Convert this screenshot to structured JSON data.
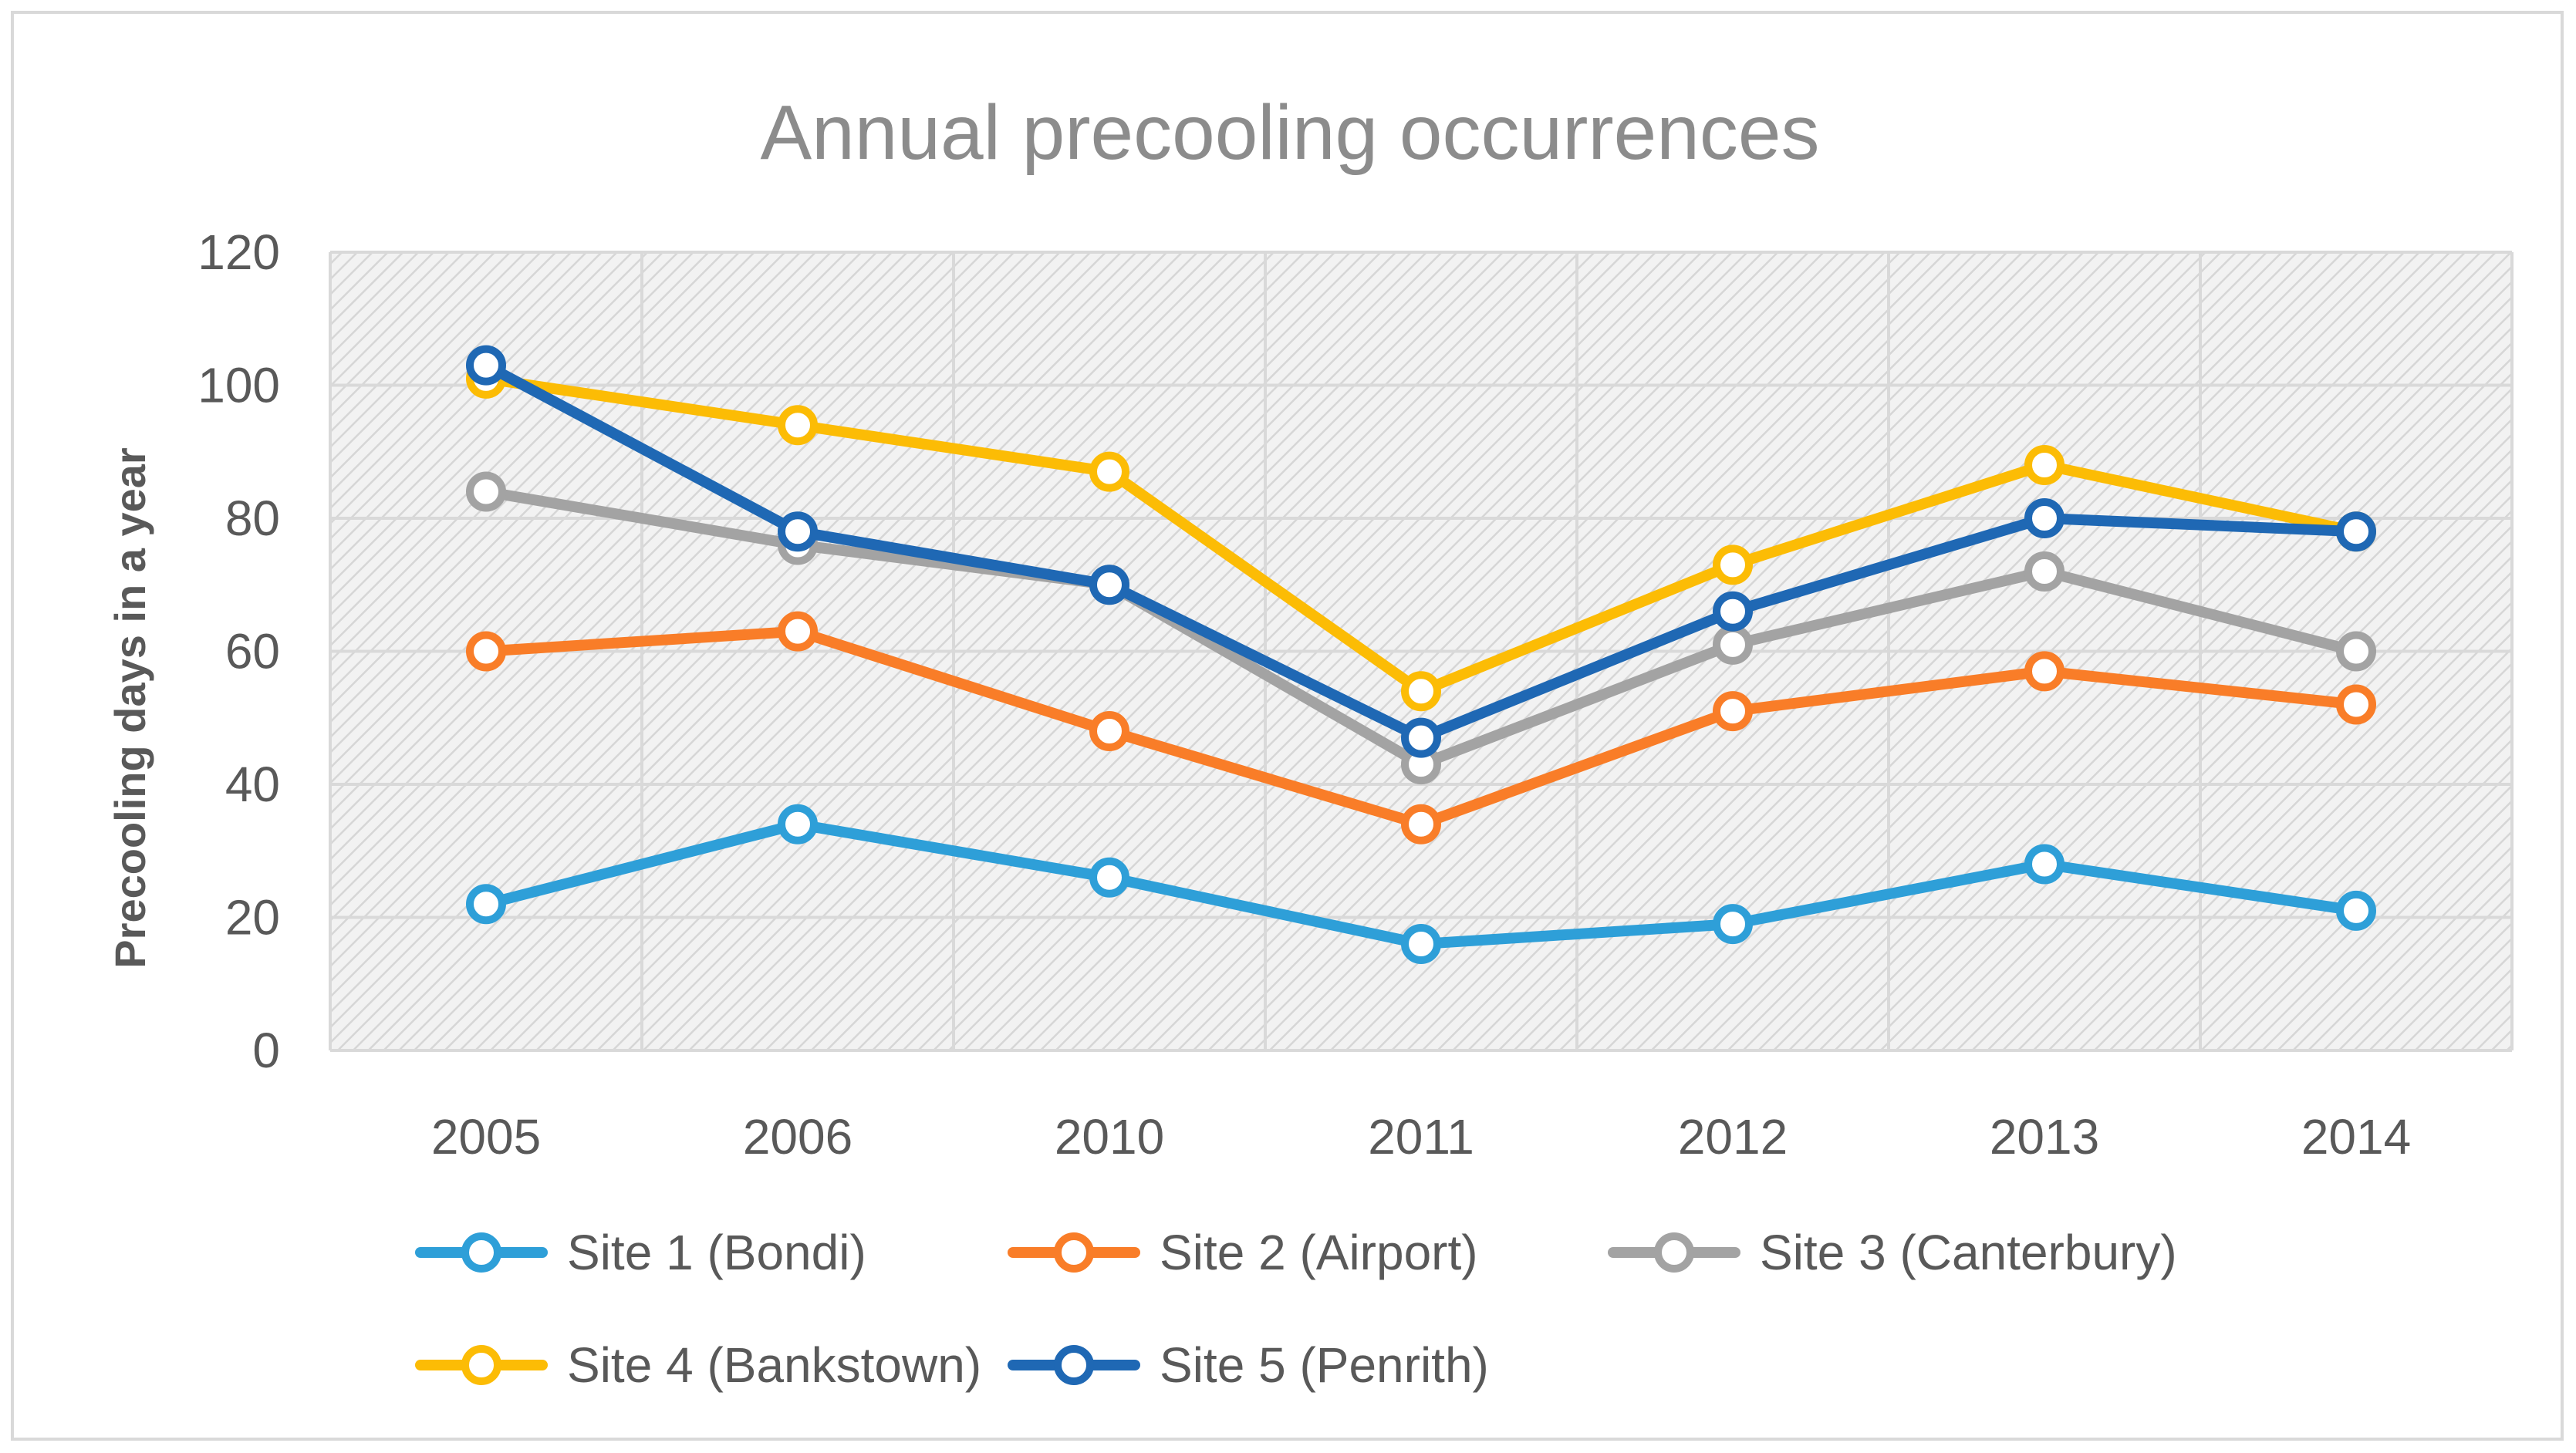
{
  "chart_data": {
    "type": "line",
    "title": "Annual precooling occurrences",
    "xlabel": "",
    "ylabel": "Precooling days in a year",
    "categories": [
      "2005",
      "2006",
      "2010",
      "2011",
      "2012",
      "2013",
      "2014"
    ],
    "ylim": [
      0,
      120
    ],
    "yticks": [
      0,
      20,
      40,
      60,
      80,
      100,
      120
    ],
    "grid": true,
    "legend_position": "bottom",
    "series": [
      {
        "name": "Site 1 (Bondi)",
        "color": "#2e9fd8",
        "values": [
          22,
          34,
          26,
          16,
          19,
          28,
          21
        ]
      },
      {
        "name": "Site 2 (Airport)",
        "color": "#f97d28",
        "values": [
          60,
          63,
          48,
          34,
          51,
          57,
          52
        ]
      },
      {
        "name": "Site 3 (Canterbury)",
        "color": "#a3a3a3",
        "values": [
          84,
          76,
          70,
          43,
          61,
          72,
          60
        ]
      },
      {
        "name": "Site 4 (Bankstown)",
        "color": "#fcbc05",
        "values": [
          101,
          94,
          87,
          54,
          73,
          88,
          78
        ]
      },
      {
        "name": "Site 5 (Penrith)",
        "color": "#1f68b4",
        "values": [
          103,
          78,
          70,
          47,
          66,
          80,
          78
        ]
      }
    ]
  }
}
